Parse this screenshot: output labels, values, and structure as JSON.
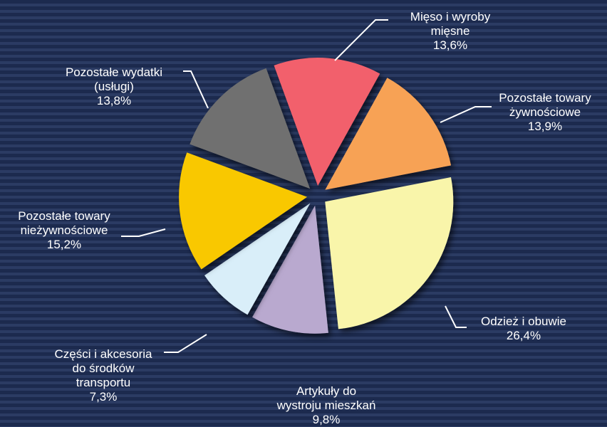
{
  "chart_data": {
    "type": "pie",
    "categories": [
      "Mięso i wyroby\nmięsne",
      "Pozostałe towary\nżywnościowe",
      "Odzież i obuwie",
      "Artykuły do\nwystroju mieszkań",
      "Części i akcesoria\ndo środków\ntransportu",
      "Pozostałe towary\nnieżywnościowe",
      "Pozostałe wydatki\n(usługi)"
    ],
    "values": [
      13.6,
      13.9,
      26.4,
      9.8,
      7.3,
      15.2,
      13.8
    ],
    "value_labels": [
      "13,6%",
      "13,9%",
      "26,4%",
      "9,8%",
      "7,3%",
      "15,2%",
      "13,8%"
    ],
    "colors": [
      "#f2606c",
      "#f7a255",
      "#f9f5aa",
      "#b9a9cf",
      "#d9eef9",
      "#f9c806",
      "#6f6f6f"
    ]
  }
}
